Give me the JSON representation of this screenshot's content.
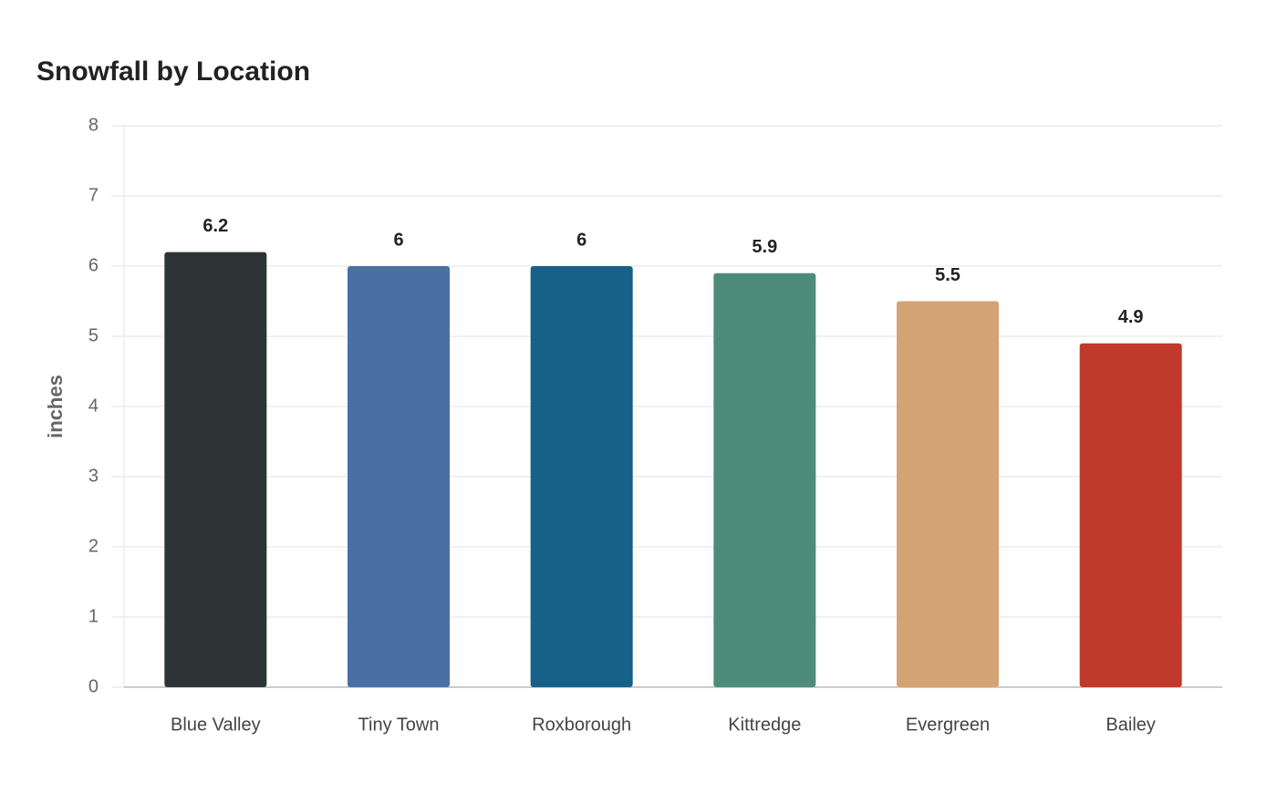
{
  "chart_data": {
    "type": "bar",
    "title": "Snowfall by Location",
    "y_label": "inches",
    "categories": [
      "Blue Valley",
      "Tiny Town",
      "Roxborough",
      "Kittredge",
      "Evergreen",
      "Bailey"
    ],
    "values": [
      6.2,
      6,
      6,
      5.9,
      5.5,
      4.9
    ],
    "colors": [
      "#2d3436",
      "#4a6fa5",
      "#176087",
      "#4e8c7a",
      "#d4a373",
      "#c0392b"
    ],
    "ylim": [
      0,
      8
    ],
    "yticks": [
      0,
      1,
      2,
      3,
      4,
      5,
      6,
      7,
      8
    ],
    "grid": true
  }
}
